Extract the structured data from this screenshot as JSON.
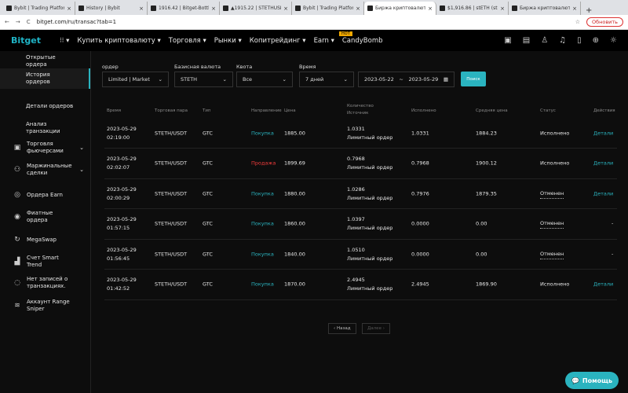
{
  "browser": {
    "tabs": [
      "Bybit | Trading Platform",
      "History | Bybit",
      "1916.42 | Bitget-Bottle",
      "▲1915.22 | STETHUSD",
      "Bybit | Trading Platform",
      "Биржа криптовалют",
      "$1,916.86 | stETH (stE",
      "Биржа криптовалют"
    ],
    "active_tab": 5,
    "url": "bitget.com/ru/transac?tab=1",
    "update_label": "Обновить"
  },
  "nav": {
    "logo": "Bitget",
    "items": [
      "Купить криптовалюту ▾",
      "Торговля ▾",
      "Рынки ▾",
      "Копитрейдинг ▾",
      "Earn ▾",
      "CandyBomb"
    ],
    "hot_badge": "HOT"
  },
  "sidebar": {
    "items": [
      {
        "label": "Открытые ордера",
        "icon": ""
      },
      {
        "label": "История ордеров",
        "icon": "",
        "active": true
      },
      {
        "label": "Детали ордеров",
        "icon": ""
      },
      {
        "label": "Анализ транзакции",
        "icon": ""
      },
      {
        "label": "Торговля фьючерсами",
        "icon": "futures-icon",
        "expand": true
      },
      {
        "label": "Маржинальные сделки",
        "icon": "margin-icon",
        "expand": true
      },
      {
        "label": "Ордера Earn",
        "icon": "earn-icon"
      },
      {
        "label": "Фиатные ордера",
        "icon": "fiat-icon"
      },
      {
        "label": "MegaSwap",
        "icon": "swap-icon"
      },
      {
        "label": "Счет Smart Trend",
        "icon": "chart-icon"
      },
      {
        "label": "Нет записей о транзакциях.",
        "icon": "records-icon"
      },
      {
        "label": "Аккаунт Range Sniper",
        "icon": "sniper-icon"
      }
    ]
  },
  "filters": {
    "order_label": "ордер",
    "order_value": "Limited | Market",
    "base_label": "Базисная валюта",
    "base_value": "STETH",
    "quote_label": "Квота",
    "quote_value": "Все",
    "time_label": "Время",
    "time_value": "7 дней",
    "date_from": "2023-05-22",
    "date_sep": "~",
    "date_to": "2023-05-29",
    "search": "Поиск"
  },
  "table": {
    "headers": [
      "Время",
      "Торговая пара",
      "Тип",
      "Направление",
      "Цена",
      "Количество Источник",
      "Исполнено",
      "Средняя цена",
      "Статус",
      "Действия"
    ],
    "rows": [
      {
        "date": "2023-05-29",
        "time": "02:19:00",
        "pair": "STETH/USDT",
        "type": "GTC",
        "side": "Покупка",
        "price": "1885.00",
        "qty": "1.0331",
        "source": "Лимитный ордер",
        "filled": "1.0331",
        "avg": "1884.23",
        "status": "Исполнено",
        "action": "Детали"
      },
      {
        "date": "2023-05-29",
        "time": "02:02:07",
        "pair": "STETH/USDT",
        "type": "GTC",
        "side": "Продажа",
        "price": "1899.69",
        "qty": "0.7968",
        "source": "Лимитный ордер",
        "filled": "0.7968",
        "avg": "1900.12",
        "status": "Исполнено",
        "action": "Детали"
      },
      {
        "date": "2023-05-29",
        "time": "02:00:29",
        "pair": "STETH/USDT",
        "type": "GTC",
        "side": "Покупка",
        "price": "1880.00",
        "qty": "1.0286",
        "source": "Лимитный ордер",
        "filled": "0.7976",
        "avg": "1879.35",
        "status": "Отменен",
        "action": "Детали"
      },
      {
        "date": "2023-05-29",
        "time": "01:57:15",
        "pair": "STETH/USDT",
        "type": "GTC",
        "side": "Покупка",
        "price": "1860.00",
        "qty": "1.0397",
        "source": "Лимитный ордер",
        "filled": "0.0000",
        "avg": "0.00",
        "status": "Отменен",
        "action": "-"
      },
      {
        "date": "2023-05-29",
        "time": "01:56:45",
        "pair": "STETH/USDT",
        "type": "GTC",
        "side": "Покупка",
        "price": "1840.00",
        "qty": "1.0510",
        "source": "Лимитный ордер",
        "filled": "0.0000",
        "avg": "0.00",
        "status": "Отменен",
        "action": "-"
      },
      {
        "date": "2023-05-29",
        "time": "01:42:52",
        "pair": "STETH/USDT",
        "type": "GTC",
        "side": "Покупка",
        "price": "1870.00",
        "qty": "2.4945",
        "source": "Лимитный ордер",
        "filled": "2.4945",
        "avg": "1869.90",
        "status": "Исполнено",
        "action": "Детали"
      }
    ]
  },
  "pagination": {
    "prev": "‹ Назад",
    "next": "Далее ›"
  },
  "help": {
    "label": "Помощь"
  },
  "colors": {
    "accent": "#2ab3bf",
    "buy": "#2ab3bf",
    "sell": "#f23c3c"
  }
}
